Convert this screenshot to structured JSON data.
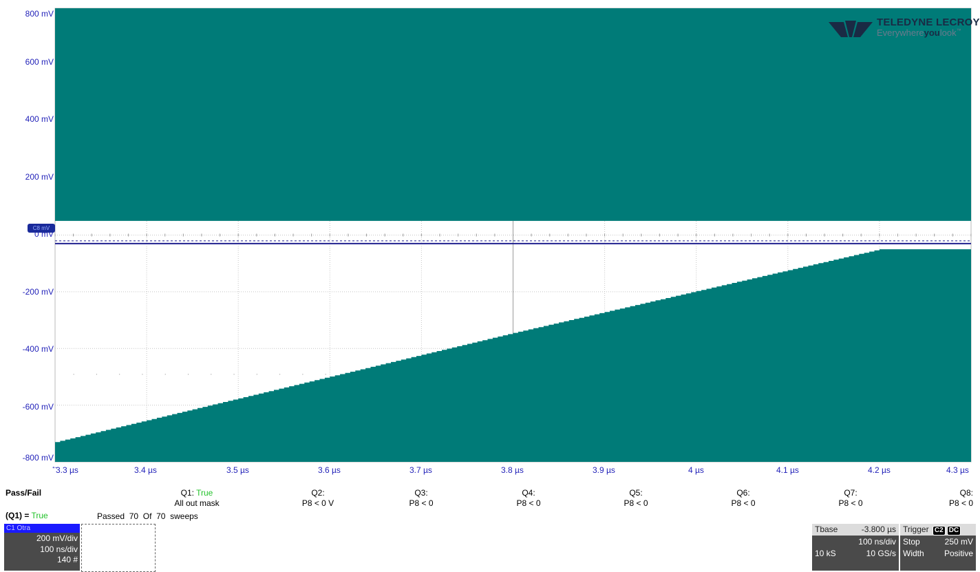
{
  "scope": {
    "y_labels": [
      "800 mV",
      "600 mV",
      "400 mV",
      "200 mV",
      "0 mV",
      "-200 mV",
      "-400 mV",
      "-600 mV",
      "-800 mV"
    ],
    "x_labels": [
      "3.3 µs",
      "3.4 µs",
      "3.5 µs",
      "3.6 µs",
      "3.7 µs",
      "3.8 µs",
      "3.9 µs",
      "4 µs",
      "4.1 µs",
      "4.2 µs",
      "4.3 µs"
    ],
    "arrow_left": "←",
    "marker_label": "C8 mV",
    "fill_color": "#007b78",
    "trace_color": "#1f1f8f"
  },
  "chart_data": {
    "type": "line",
    "xlabel": "",
    "ylabel": "",
    "x_unit": "µs",
    "y_unit": "mV",
    "xlim": [
      3.3,
      4.3
    ],
    "ylim": [
      -800,
      800
    ],
    "upper_mask_bottom_mV": 50,
    "lower_mask_top": {
      "x": [
        3.3,
        3.8,
        4.2,
        4.3
      ],
      "y": [
        -730,
        -345,
        -50,
        -50
      ]
    },
    "trace": {
      "x": [
        3.3,
        4.3
      ],
      "y": [
        -30,
        -30
      ]
    },
    "grid": true
  },
  "logo": {
    "brand": "TELEDYNE LECROY",
    "tagline_a": "Everywhere",
    "tagline_b": "you",
    "tagline_c": "look",
    "tm": "™"
  },
  "passfail": {
    "title": "Pass/Fail",
    "q1_label": "Q1:",
    "q1_value": "True",
    "q1_desc": "All out mask",
    "summary_label": "(Q1) =",
    "summary_value": "True",
    "passed_text": "Passed",
    "passed_count": "70",
    "of_text": "Of",
    "of_count": "70",
    "sweeps_text": "sweeps",
    "queries": [
      {
        "label": "Q2:",
        "cond": "P8 < 0 V"
      },
      {
        "label": "Q3:",
        "cond": "P8 < 0"
      },
      {
        "label": "Q4:",
        "cond": "P8 < 0"
      },
      {
        "label": "Q5:",
        "cond": "P8 < 0"
      },
      {
        "label": "Q6:",
        "cond": "P8 < 0"
      },
      {
        "label": "Q7:",
        "cond": "P8 < 0"
      },
      {
        "label": "Q8:",
        "cond": "P8 < 0"
      }
    ]
  },
  "channel": {
    "header": "C1 Otra",
    "vdiv": "200 mV/div",
    "tdiv": "100 ns/div",
    "count": "140 #"
  },
  "timebase": {
    "label": "Tbase",
    "offset": "-3.800 µs",
    "tdiv": "100 ns/div",
    "samples": "10 kS",
    "rate": "10 GS/s"
  },
  "trigger": {
    "label": "Trigger",
    "badge1": "C2",
    "badge2": "DC",
    "mode": "Stop",
    "level": "250 mV",
    "type": "Width",
    "polarity": "Positive"
  }
}
